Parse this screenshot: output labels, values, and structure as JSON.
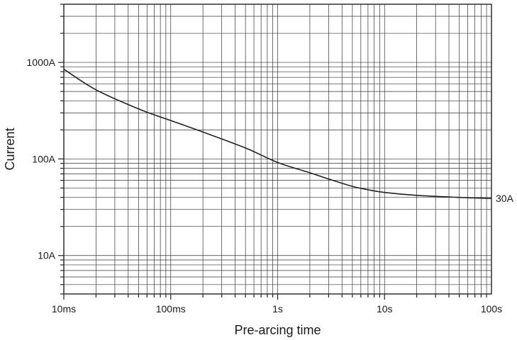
{
  "chart_data": {
    "type": "line",
    "title": "",
    "xlabel": "Pre-arcing time",
    "ylabel": "Current",
    "x_scale": "log",
    "y_scale": "log",
    "x_unit": "s",
    "y_unit": "A",
    "xlim": [
      0.01,
      100
    ],
    "ylim": [
      4,
      4000
    ],
    "grid": true,
    "legend": "none",
    "x_ticks": [
      {
        "value": 0.01,
        "label": "10ms"
      },
      {
        "value": 0.1,
        "label": "100ms"
      },
      {
        "value": 1,
        "label": "1s"
      },
      {
        "value": 10,
        "label": "10s"
      },
      {
        "value": 100,
        "label": "100s"
      }
    ],
    "y_ticks": [
      {
        "value": 10,
        "label": "10A"
      },
      {
        "value": 100,
        "label": "100A"
      },
      {
        "value": 1000,
        "label": "1000A"
      }
    ],
    "series": [
      {
        "label": "30A",
        "color": "#222222",
        "x": [
          0.01,
          0.02,
          0.05,
          0.1,
          0.2,
          0.5,
          1,
          2,
          3,
          5,
          7,
          10,
          20,
          50,
          100
        ],
        "y": [
          850,
          520,
          330,
          250,
          190,
          130,
          92,
          72,
          62,
          52,
          48,
          45,
          42,
          40,
          39
        ]
      }
    ]
  }
}
